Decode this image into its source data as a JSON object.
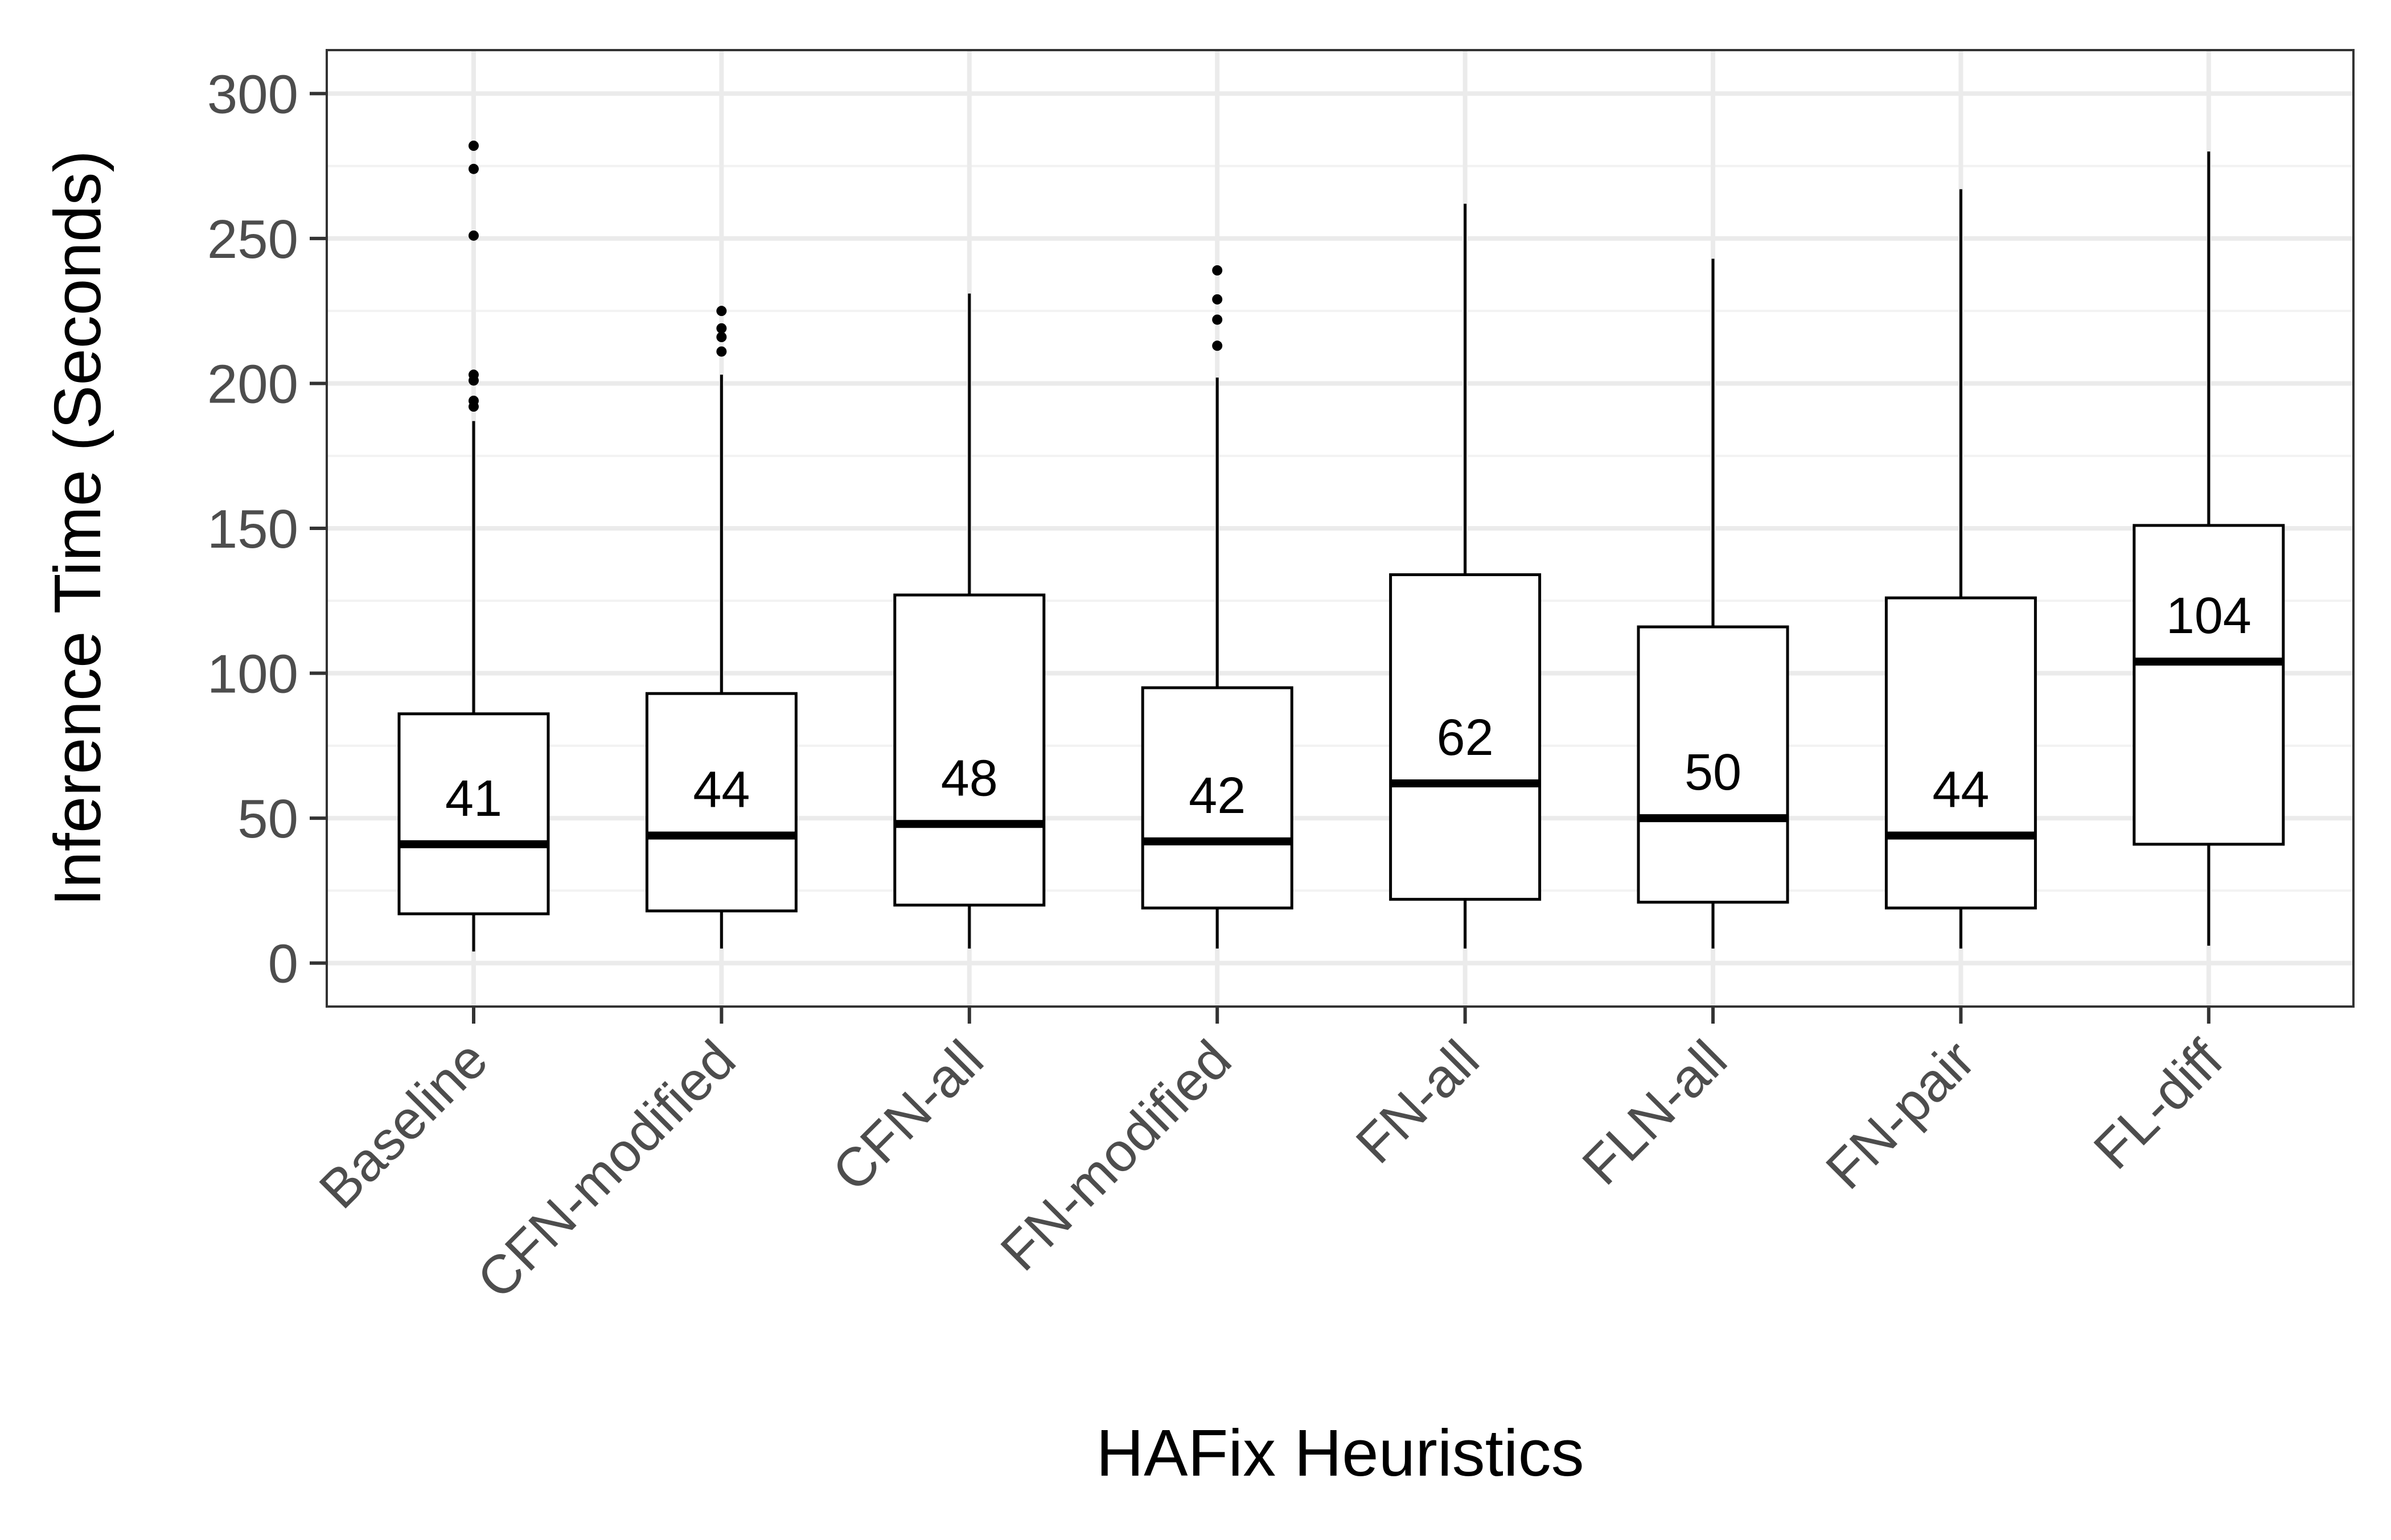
{
  "chart_data": {
    "type": "box",
    "xlabel": "HAFix Heuristics",
    "ylabel": "Inference Time (Seconds)",
    "ylim": [
      -15,
      315
    ],
    "yticks": [
      0,
      50,
      100,
      150,
      200,
      250,
      300
    ],
    "grid": true,
    "categories": [
      "Baseline",
      "CFN-modified",
      "CFN-all",
      "FN-modified",
      "FN-all",
      "FLN-all",
      "FN-pair",
      "FL-diff"
    ],
    "boxes": [
      {
        "category": "Baseline",
        "whisker_low": 4,
        "q1": 17,
        "median": 41,
        "q3": 86,
        "whisker_high": 187,
        "outliers": [
          192,
          194,
          201,
          203,
          251,
          274,
          282
        ],
        "median_label": "41"
      },
      {
        "category": "CFN-modified",
        "whisker_low": 5,
        "q1": 18,
        "median": 44,
        "q3": 93,
        "whisker_high": 203,
        "outliers": [
          211,
          216,
          219,
          225
        ],
        "median_label": "44"
      },
      {
        "category": "CFN-all",
        "whisker_low": 5,
        "q1": 20,
        "median": 48,
        "q3": 127,
        "whisker_high": 231,
        "outliers": [],
        "median_label": "48"
      },
      {
        "category": "FN-modified",
        "whisker_low": 5,
        "q1": 19,
        "median": 42,
        "q3": 95,
        "whisker_high": 202,
        "outliers": [
          213,
          222,
          229,
          239
        ],
        "median_label": "42"
      },
      {
        "category": "FN-all",
        "whisker_low": 5,
        "q1": 22,
        "median": 62,
        "q3": 134,
        "whisker_high": 262,
        "outliers": [],
        "median_label": "62"
      },
      {
        "category": "FLN-all",
        "whisker_low": 5,
        "q1": 21,
        "median": 50,
        "q3": 116,
        "whisker_high": 243,
        "outliers": [],
        "median_label": "50"
      },
      {
        "category": "FN-pair",
        "whisker_low": 5,
        "q1": 19,
        "median": 44,
        "q3": 126,
        "whisker_high": 267,
        "outliers": [],
        "median_label": "44"
      },
      {
        "category": "FL-diff",
        "whisker_low": 6,
        "q1": 41,
        "median": 104,
        "q3": 151,
        "whisker_high": 280,
        "outliers": [],
        "median_label": "104"
      }
    ]
  },
  "colors": {
    "panel_background": "#ffffff",
    "grid_major": "#ebebeb",
    "grid_minor": "#f2f2f2",
    "box_stroke": "#000000",
    "tick_text": "#4d4d4d",
    "title_text": "#000000"
  }
}
